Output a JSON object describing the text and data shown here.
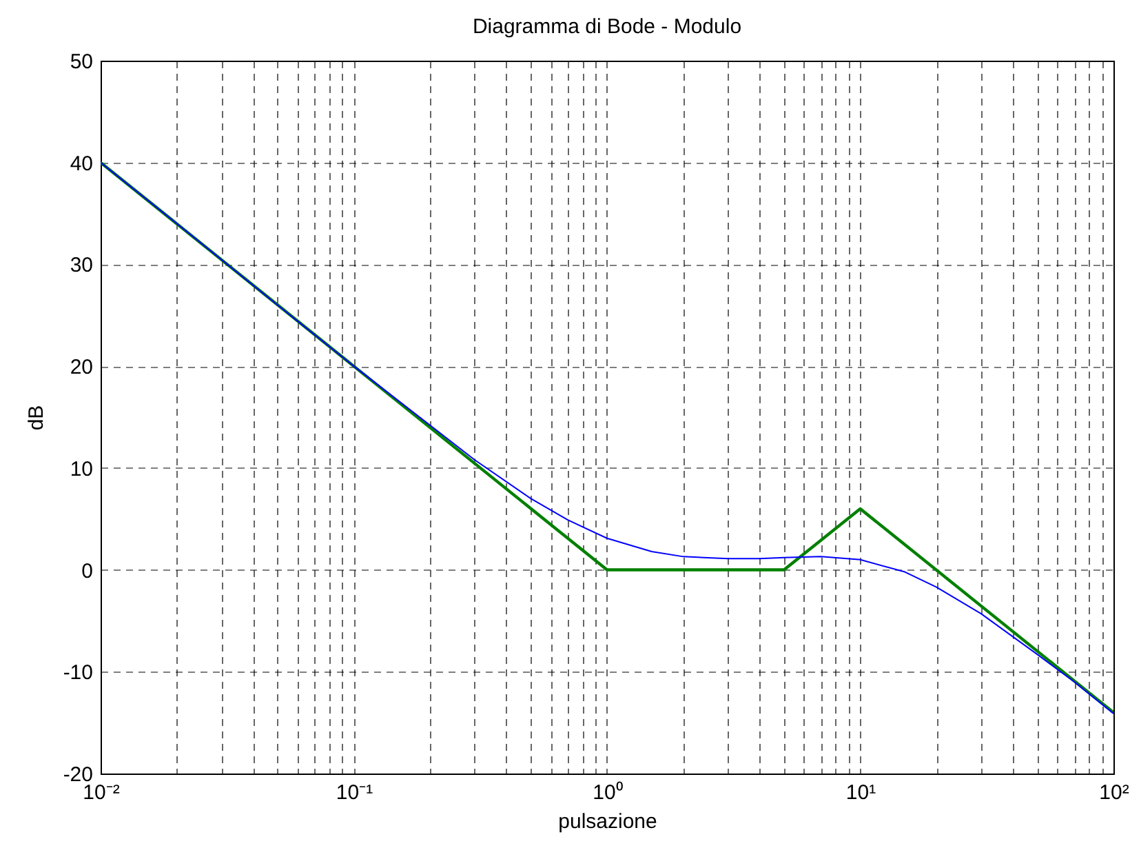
{
  "chart_data": {
    "type": "line",
    "title": "Diagramma di Bode - Modulo",
    "xlabel": "pulsazione",
    "ylabel": "dB",
    "log": "x",
    "grid": true,
    "line_style": "solid",
    "xlim": [
      0.01,
      100
    ],
    "ylim": [
      -20,
      50
    ],
    "xticks": [
      {
        "value": 0.01,
        "label": "10⁻²"
      },
      {
        "value": 0.02,
        "label": null
      },
      {
        "value": 0.03,
        "label": null
      },
      {
        "value": 0.04,
        "label": null
      },
      {
        "value": 0.05,
        "label": null
      },
      {
        "value": 0.06,
        "label": null
      },
      {
        "value": 0.07,
        "label": null
      },
      {
        "value": 0.08,
        "label": null
      },
      {
        "value": 0.09,
        "label": null
      },
      {
        "value": 0.1,
        "label": "10⁻¹"
      },
      {
        "value": 0.2,
        "label": null
      },
      {
        "value": 0.3,
        "label": null
      },
      {
        "value": 0.4,
        "label": null
      },
      {
        "value": 0.5,
        "label": null
      },
      {
        "value": 0.6,
        "label": null
      },
      {
        "value": 0.7,
        "label": null
      },
      {
        "value": 0.8,
        "label": null
      },
      {
        "value": 0.9,
        "label": null
      },
      {
        "value": 1,
        "label": "10⁰"
      },
      {
        "value": 2,
        "label": null
      },
      {
        "value": 3,
        "label": null
      },
      {
        "value": 4,
        "label": null
      },
      {
        "value": 5,
        "label": null
      },
      {
        "value": 6,
        "label": null
      },
      {
        "value": 7,
        "label": null
      },
      {
        "value": 8,
        "label": null
      },
      {
        "value": 9,
        "label": null
      },
      {
        "value": 10,
        "label": "10¹"
      },
      {
        "value": 20,
        "label": null
      },
      {
        "value": 30,
        "label": null
      },
      {
        "value": 40,
        "label": null
      },
      {
        "value": 50,
        "label": null
      },
      {
        "value": 60,
        "label": null
      },
      {
        "value": 70,
        "label": null
      },
      {
        "value": 80,
        "label": null
      },
      {
        "value": 90,
        "label": null
      },
      {
        "value": 100,
        "label": "10²"
      }
    ],
    "yticks": [
      -20,
      -10,
      0,
      10,
      20,
      30,
      40,
      50
    ],
    "series": [
      {
        "color": "#0000ff",
        "x": [
          0.01,
          0.02,
          0.05,
          0.1,
          0.2,
          0.3,
          0.5,
          0.7,
          1,
          1.5,
          2,
          3,
          4,
          5,
          7,
          10,
          15,
          20,
          30,
          50,
          70,
          100
        ],
        "values": [
          40.0,
          34.0,
          26.0,
          20.0,
          14.2,
          10.8,
          7.0,
          4.9,
          3.1,
          1.8,
          1.3,
          1.1,
          1.1,
          1.2,
          1.3,
          1.0,
          -0.2,
          -1.7,
          -4.3,
          -8.3,
          -11.0,
          -14.1
        ]
      },
      {
        "color": "#008000",
        "x": [
          0.01,
          1,
          5,
          10,
          100
        ],
        "values": [
          40,
          0,
          0,
          6,
          -14
        ]
      }
    ]
  }
}
